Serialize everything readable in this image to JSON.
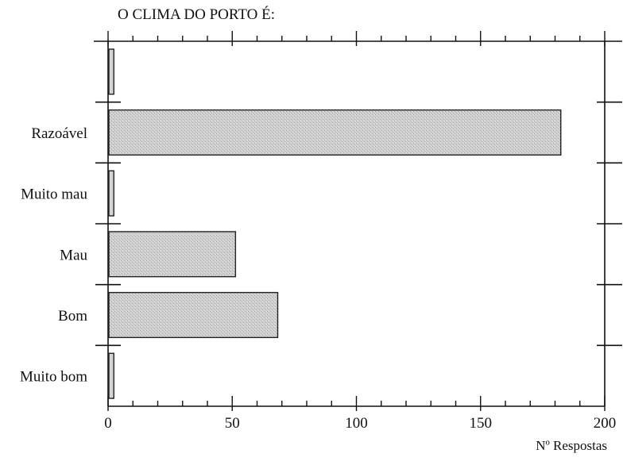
{
  "chart_data": {
    "type": "bar",
    "orientation": "horizontal",
    "title": "O CLIMA DO PORTO É:",
    "xlabel": "Nº Respostas",
    "ylabel": "",
    "categories": [
      "",
      "Razoável",
      "Muito mau",
      "Mau",
      "Bom",
      "Muito bom"
    ],
    "values": [
      2,
      182,
      2,
      51,
      68,
      2
    ],
    "xlim": [
      0,
      200
    ],
    "xticks": [
      0,
      50,
      100,
      150,
      200
    ],
    "grid": false,
    "bar_color": "#c8c8c8",
    "bar_edge_color": "#222222"
  }
}
